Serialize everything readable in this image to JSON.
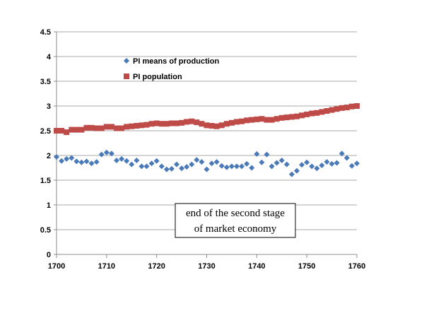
{
  "chart_data": {
    "type": "scatter",
    "title": "",
    "xlabel": "",
    "ylabel": "",
    "xlim": [
      1700,
      1760
    ],
    "ylim": [
      0,
      4.5
    ],
    "xticks": [
      1700,
      1710,
      1720,
      1730,
      1740,
      1750,
      1760
    ],
    "yticks": [
      0,
      0.5,
      1,
      1.5,
      2,
      2.5,
      3,
      3.5,
      4,
      4.5
    ],
    "grid": "horizontal",
    "legend_position": "top-left",
    "annotation": [
      "end of the second stage",
      "of market economy"
    ],
    "series": [
      {
        "name": "PI means of production",
        "color": "#4a7ab8",
        "marker": "diamond",
        "x": [
          1700,
          1701,
          1702,
          1703,
          1704,
          1705,
          1706,
          1707,
          1708,
          1709,
          1710,
          1711,
          1712,
          1713,
          1714,
          1715,
          1716,
          1717,
          1718,
          1719,
          1720,
          1721,
          1722,
          1723,
          1724,
          1725,
          1726,
          1727,
          1728,
          1729,
          1730,
          1731,
          1732,
          1733,
          1734,
          1735,
          1736,
          1737,
          1738,
          1739,
          1740,
          1741,
          1742,
          1743,
          1744,
          1745,
          1746,
          1747,
          1748,
          1749,
          1750,
          1751,
          1752,
          1753,
          1754,
          1755,
          1756,
          1757,
          1758,
          1759,
          1760
        ],
        "y": [
          1.97,
          1.89,
          1.93,
          1.95,
          1.88,
          1.86,
          1.88,
          1.84,
          1.87,
          2.02,
          2.06,
          2.04,
          1.9,
          1.93,
          1.89,
          1.82,
          1.9,
          1.78,
          1.78,
          1.84,
          1.89,
          1.78,
          1.72,
          1.73,
          1.82,
          1.74,
          1.77,
          1.82,
          1.91,
          1.87,
          1.72,
          1.84,
          1.87,
          1.79,
          1.76,
          1.78,
          1.78,
          1.78,
          1.83,
          1.75,
          2.03,
          1.86,
          2.02,
          1.78,
          1.85,
          1.9,
          1.82,
          1.62,
          1.69,
          1.81,
          1.86,
          1.78,
          1.74,
          1.8,
          1.87,
          1.83,
          1.85,
          2.04,
          1.95,
          1.79,
          1.84
        ]
      },
      {
        "name": "PI population",
        "color": "#be4b48",
        "marker": "square",
        "x": [
          1700,
          1701,
          1702,
          1703,
          1704,
          1705,
          1706,
          1707,
          1708,
          1709,
          1710,
          1711,
          1712,
          1713,
          1714,
          1715,
          1716,
          1717,
          1718,
          1719,
          1720,
          1721,
          1722,
          1723,
          1724,
          1725,
          1726,
          1727,
          1728,
          1729,
          1730,
          1731,
          1732,
          1733,
          1734,
          1735,
          1736,
          1737,
          1738,
          1739,
          1740,
          1741,
          1742,
          1743,
          1744,
          1745,
          1746,
          1747,
          1748,
          1749,
          1750,
          1751,
          1752,
          1753,
          1754,
          1755,
          1756,
          1757,
          1758,
          1759,
          1760
        ],
        "y": [
          2.5,
          2.5,
          2.47,
          2.52,
          2.52,
          2.52,
          2.56,
          2.56,
          2.55,
          2.55,
          2.58,
          2.58,
          2.55,
          2.55,
          2.58,
          2.59,
          2.6,
          2.61,
          2.62,
          2.64,
          2.65,
          2.64,
          2.64,
          2.65,
          2.65,
          2.66,
          2.68,
          2.69,
          2.67,
          2.64,
          2.61,
          2.6,
          2.59,
          2.61,
          2.64,
          2.66,
          2.68,
          2.69,
          2.71,
          2.72,
          2.73,
          2.74,
          2.72,
          2.72,
          2.74,
          2.76,
          2.77,
          2.78,
          2.79,
          2.81,
          2.83,
          2.85,
          2.86,
          2.88,
          2.9,
          2.92,
          2.94,
          2.96,
          2.97,
          2.99,
          3.0
        ]
      }
    ]
  }
}
